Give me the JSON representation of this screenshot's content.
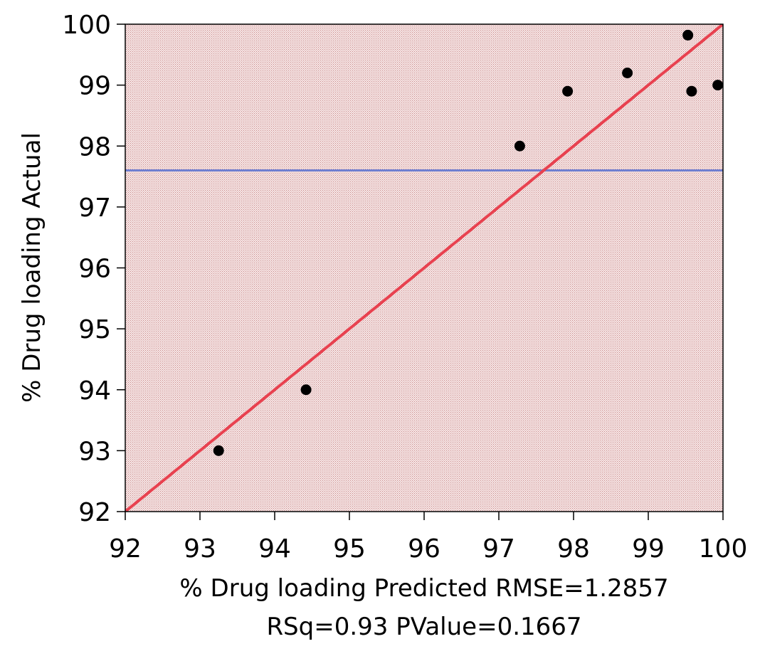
{
  "chart_data": {
    "type": "scatter",
    "xlabel": "% Drug loading Predicted RMSE=1.2857",
    "xlabel_line2": "RSq=0.93 PValue=0.1667",
    "ylabel": "% Drug loading Actual",
    "xlim": [
      92,
      100
    ],
    "ylim": [
      92,
      100
    ],
    "x_ticks": [
      "92",
      "93",
      "94",
      "95",
      "96",
      "97",
      "98",
      "99",
      "100"
    ],
    "y_ticks": [
      "92",
      "93",
      "94",
      "95",
      "96",
      "97",
      "98",
      "99",
      "100"
    ],
    "points": [
      {
        "x": 93.25,
        "y": 93.0
      },
      {
        "x": 94.42,
        "y": 94.0
      },
      {
        "x": 97.28,
        "y": 98.0
      },
      {
        "x": 97.92,
        "y": 98.9
      },
      {
        "x": 98.72,
        "y": 99.2
      },
      {
        "x": 99.53,
        "y": 99.82
      },
      {
        "x": 99.58,
        "y": 98.9
      },
      {
        "x": 99.93,
        "y": 99.0
      }
    ],
    "fit_line": {
      "x": [
        92,
        100
      ],
      "y": [
        92,
        100
      ]
    },
    "mean_line_y": 97.6,
    "colors": {
      "fit_line": "#e8414f",
      "mean_line": "#6f7fd0",
      "points": "#000000",
      "plot_background": "#f2dede",
      "hatch": "#c98a8a"
    },
    "grid": false,
    "legend": "none"
  }
}
